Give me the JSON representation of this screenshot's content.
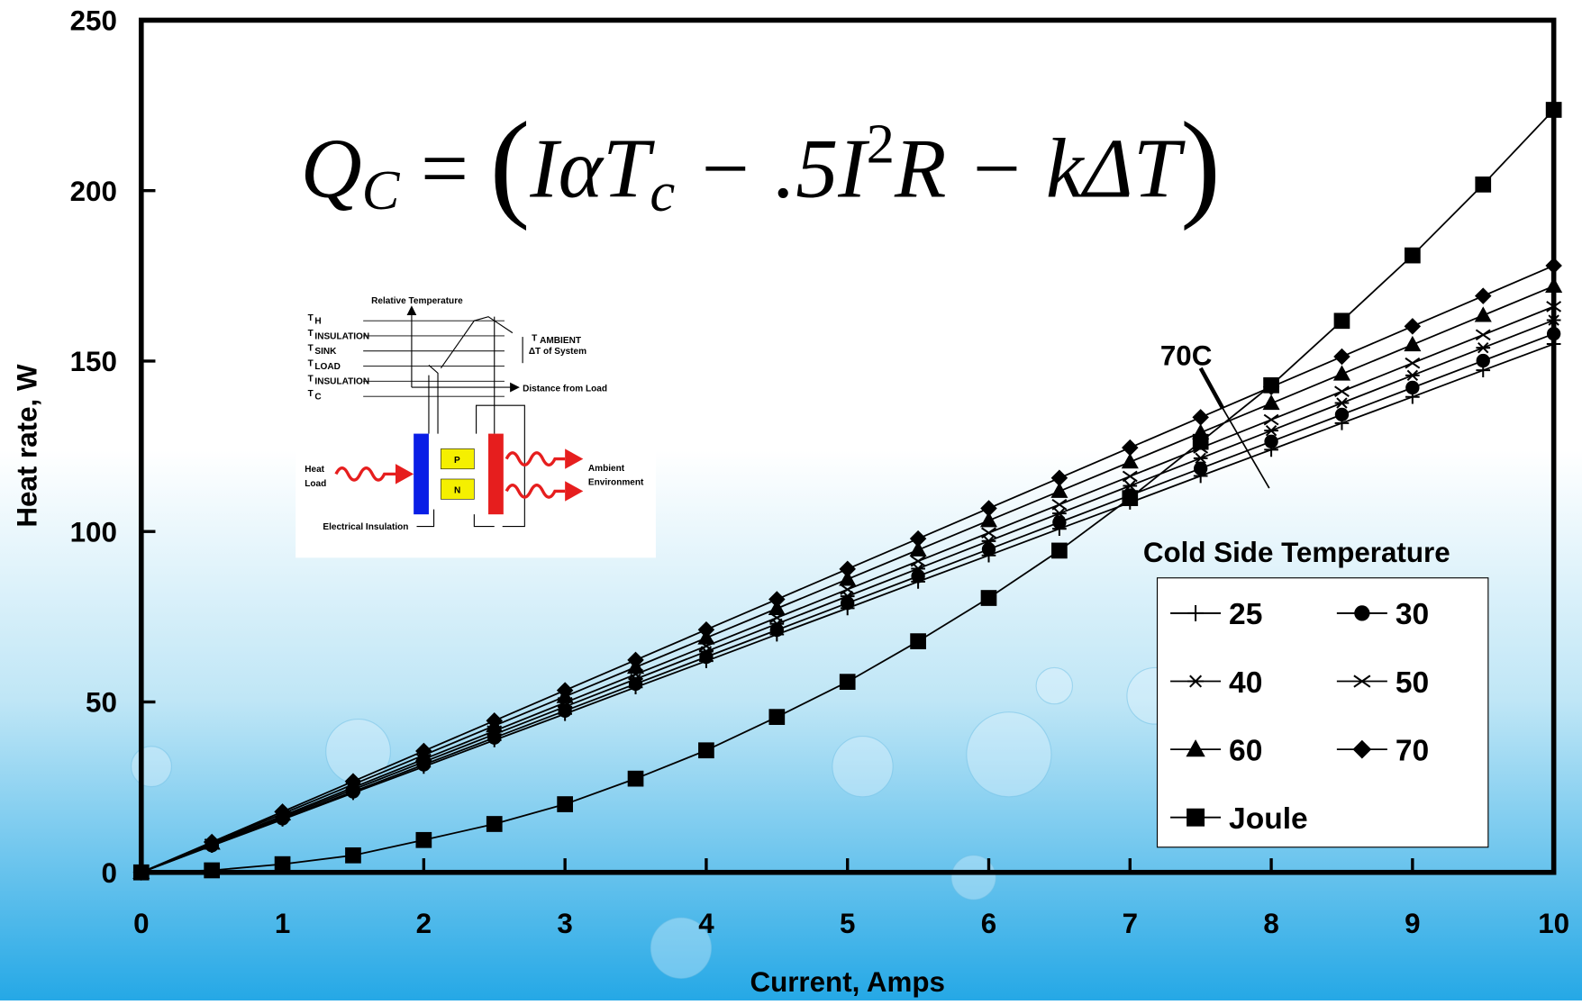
{
  "chart_data": {
    "type": "line",
    "equation": [
      "Q",
      "C",
      " = ",
      "(",
      "IαT",
      "c",
      " − .5I",
      "2",
      "R − kΔT",
      ")"
    ],
    "x_label": "Current, Amps",
    "y_label": "Heat rate, W",
    "x": [
      0,
      0.5,
      1,
      1.5,
      2,
      2.5,
      3,
      3.5,
      4,
      4.5,
      5,
      5.5,
      6,
      6.5,
      7,
      7.5,
      8,
      8.5,
      9,
      9.5,
      10
    ],
    "xlim": [
      0,
      10
    ],
    "xticks": [
      0,
      1,
      2,
      3,
      4,
      5,
      6,
      7,
      8,
      9,
      10
    ],
    "ylim": [
      0,
      250
    ],
    "yticks": [
      0,
      50,
      100,
      150,
      200,
      250
    ],
    "grid": false,
    "legend_title": "Cold Side Temperature",
    "legend_position": "lower right",
    "annotation": "70C",
    "series": [
      {
        "name": "25",
        "color": "#000000",
        "marker": "plus",
        "values": [
          0,
          7.8,
          15.5,
          23.3,
          31,
          38.8,
          46.5,
          54.3,
          62,
          69.8,
          77.5,
          85.3,
          93,
          100.8,
          108.5,
          116.3,
          124,
          131.8,
          139.5,
          147.3,
          155
        ]
      },
      {
        "name": "30",
        "color": "#000000",
        "marker": "circle",
        "values": [
          0,
          7.9,
          15.8,
          23.7,
          31.6,
          39.5,
          47.4,
          55.3,
          63.2,
          71.1,
          79,
          86.9,
          94.8,
          102.7,
          110.6,
          118.5,
          126.4,
          134.3,
          142.2,
          150.1,
          158
        ]
      },
      {
        "name": "40",
        "color": "#000000",
        "marker": "asterisk",
        "values": [
          0,
          8.1,
          16.2,
          24.3,
          32.4,
          40.5,
          48.6,
          56.7,
          64.8,
          72.9,
          81,
          89.1,
          97.2,
          105.3,
          113.4,
          121.5,
          129.6,
          137.7,
          145.8,
          153.9,
          162
        ]
      },
      {
        "name": "50",
        "color": "#000000",
        "marker": "x",
        "values": [
          0,
          8.3,
          16.6,
          24.9,
          33.2,
          41.5,
          49.8,
          58.1,
          66.4,
          74.7,
          83,
          91.3,
          99.6,
          107.9,
          116.2,
          124.5,
          132.8,
          141.1,
          149.4,
          157.7,
          166
        ]
      },
      {
        "name": "60",
        "color": "#000000",
        "marker": "triangle",
        "values": [
          0,
          8.6,
          17.2,
          25.8,
          34.4,
          43,
          51.6,
          60.2,
          68.8,
          77.4,
          86,
          94.6,
          103.2,
          111.8,
          120.4,
          129,
          137.6,
          146.2,
          154.8,
          163.4,
          172
        ]
      },
      {
        "name": "70",
        "color": "#000000",
        "marker": "diamond",
        "values": [
          0,
          8.9,
          17.8,
          26.7,
          35.6,
          44.5,
          53.4,
          62.3,
          71.2,
          80.1,
          89,
          97.9,
          106.8,
          115.7,
          124.6,
          133.5,
          142.4,
          151.3,
          160.2,
          169.1,
          178
        ]
      },
      {
        "name": "Joule",
        "color": "#000000",
        "marker": "square",
        "values": [
          0,
          0.6,
          2.4,
          5,
          9.5,
          14.2,
          20,
          27.5,
          35.8,
          45.6,
          55.9,
          67.8,
          80.5,
          94.4,
          109.8,
          126.3,
          142.9,
          161.8,
          181,
          201.8,
          223.7
        ]
      }
    ]
  },
  "inset": {
    "title": "Relative Temperature",
    "levels": [
      {
        "symbol": "T",
        "sub": "H"
      },
      {
        "symbol": "T",
        "sub": "INSULATION"
      },
      {
        "symbol": "T",
        "sub": "SINK"
      },
      {
        "symbol": "T",
        "sub": "LOAD"
      },
      {
        "symbol": "T",
        "sub": "INSULATION"
      },
      {
        "symbol": "T",
        "sub": "C"
      }
    ],
    "ambient": {
      "symbol": "T",
      "sub": "AMBIENT"
    },
    "delta": "ΔT of System",
    "distance": "Distance from Load",
    "heat_load": [
      "Heat",
      "Load"
    ],
    "ambient_env": [
      "Ambient",
      "Environment"
    ],
    "p": "P",
    "n": "N",
    "electrical": "Electrical Insulation"
  }
}
